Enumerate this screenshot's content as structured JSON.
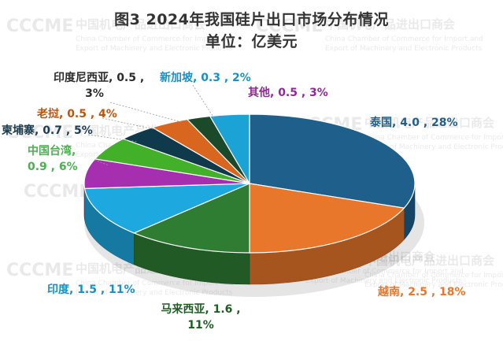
{
  "chart_data": {
    "type": "pie",
    "title": "图3  2024年我国硅片出口市场分布情况",
    "subtitle": "单位：亿美元",
    "slices": [
      {
        "label": "泰国",
        "value": 4.0,
        "percent": "28%",
        "color": "#1f5f8b",
        "text_color": "#1f5f8b",
        "label_text": "泰国, 4.0 , 28%"
      },
      {
        "label": "越南",
        "value": 2.5,
        "percent": "18%",
        "color": "#e8762b",
        "text_color": "#e8762b",
        "label_text": "越南, 2.5 , 18%"
      },
      {
        "label": "马来西亚",
        "value": 1.6,
        "percent": "11%",
        "color": "#2e7d32",
        "text_color": "#1e5c24",
        "label_lines": [
          "马来西亚, 1.6 ,",
          "11%"
        ]
      },
      {
        "label": "印度",
        "value": 1.5,
        "percent": "11%",
        "color": "#1ea8e0",
        "text_color": "#1a8fc4",
        "label_text": "印度, 1.5 , 11%"
      },
      {
        "label": "中国台湾",
        "value": 0.9,
        "percent": "6%",
        "color": "#a62fb0",
        "text_color": "#4caf50",
        "label_lines": [
          "中国台湾,",
          "0.9 , 6%"
        ]
      },
      {
        "label": "柬埔寨",
        "value": 0.7,
        "percent": "5%",
        "color": "#43b02a",
        "text_color": "#1d3c4f",
        "label_text": "柬埔寨, 0.7 , 5%"
      },
      {
        "label": "老挝",
        "value": 0.5,
        "percent": "4%",
        "color": "#0f3a4c",
        "text_color": "#b8560f",
        "label_text": "老挝, 0.5 , 4%"
      },
      {
        "label": "印度尼西亚",
        "value": 0.5,
        "percent": "3%",
        "color": "#d9661f",
        "text_color": "#2b2b2b",
        "label_lines": [
          "印度尼西亚, 0.5 ,",
          "3%"
        ]
      },
      {
        "label": "新加坡",
        "value": 0.3,
        "percent": "2%",
        "color": "#1b4a2a",
        "text_color": "#1a8fc4",
        "label_text": "新加坡, 0.3 , 2%"
      },
      {
        "label": "其他",
        "value": 0.5,
        "percent": "3%",
        "color": "#1ba3d6",
        "text_color": "#8e2a95",
        "label_text": "其他, 0.5 , 3%"
      }
    ],
    "fill_order": [
      {
        "slice": "泰国",
        "color": "#1f5f8b"
      },
      {
        "slice": "越南",
        "color": "#e8762b"
      },
      {
        "slice": "马来西亚",
        "color": "#2e7d32"
      },
      {
        "slice": "印度",
        "color": "#1ea8e0"
      },
      {
        "slice": "中国台湾",
        "color": "#a62fb0"
      },
      {
        "slice": "柬埔寨",
        "color": "#43b02a"
      },
      {
        "slice": "老挝",
        "color": "#0f3a4c"
      },
      {
        "slice": "印度尼西亚",
        "color": "#d9661f"
      },
      {
        "slice": "新加坡",
        "color": "#1b4a2a"
      },
      {
        "slice": "其他",
        "color": "#1ba3d6"
      }
    ]
  },
  "watermark": {
    "logo": "CCCME",
    "cn": "中国机电产品进出口商会",
    "en1": "China Chamber of Commerce for Import and",
    "en2": "Export of Machinery and Electronic Products"
  }
}
